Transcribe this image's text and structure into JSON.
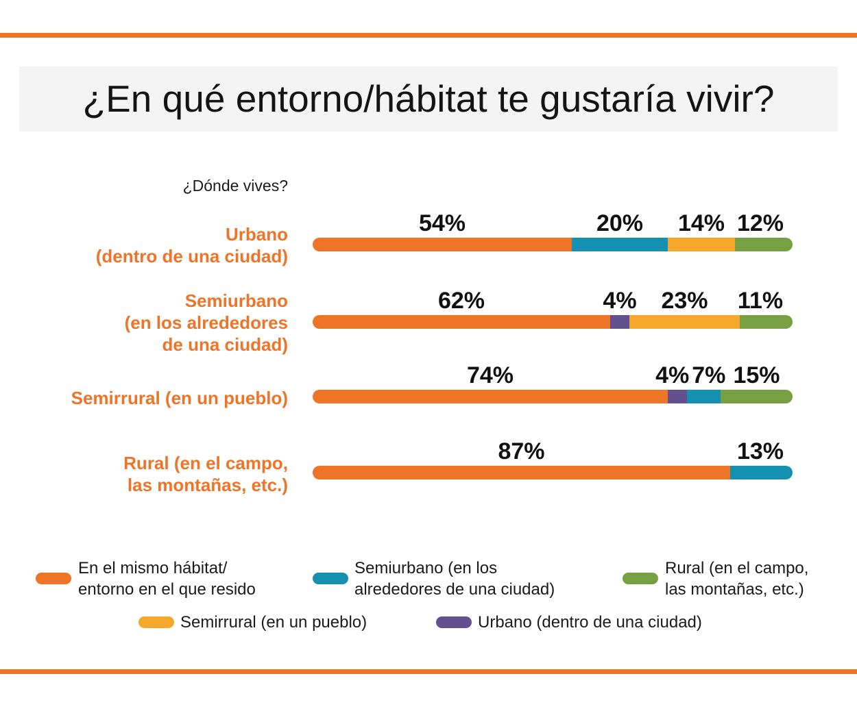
{
  "title": "¿En qué entorno/hábitat te gustaría vivir?",
  "subhead": "¿Dónde vives?",
  "colors": {
    "accent": "#ee7427",
    "mismo": "#ee7427",
    "semiurbano": "#1590b0",
    "semirrural": "#f5a82b",
    "rural": "#76a042",
    "urbano": "#62508f"
  },
  "chart_data": {
    "type": "bar",
    "orientation": "horizontal",
    "stacked": true,
    "xlim": [
      0,
      100
    ],
    "categories": [
      "Urbano\n(dentro de una ciudad)",
      "Semiurbano\n(en los alrededores\nde una ciudad)",
      "Semirrural (en un pueblo)",
      "Rural (en el campo,\nlas montañas, etc.)"
    ],
    "series": [
      {
        "name": "En el mismo hábitat/\nentorno en el que resido",
        "key": "mismo",
        "values": [
          54,
          62,
          74,
          87
        ]
      },
      {
        "name": "Urbano (dentro de una ciudad)",
        "key": "urbano",
        "values": [
          0,
          4,
          4,
          0
        ]
      },
      {
        "name": "Semiurbano (en los\nalrededores de una ciudad)",
        "key": "semiurbano",
        "values": [
          20,
          0,
          7,
          13
        ]
      },
      {
        "name": "Semirrural (en un pueblo)",
        "key": "semirrural",
        "values": [
          14,
          23,
          0,
          0
        ]
      },
      {
        "name": "Rural (en el campo,\nlas montañas, etc.)",
        "key": "rural",
        "values": [
          12,
          11,
          15,
          0
        ]
      }
    ],
    "legend": "bottom",
    "grid": false
  }
}
